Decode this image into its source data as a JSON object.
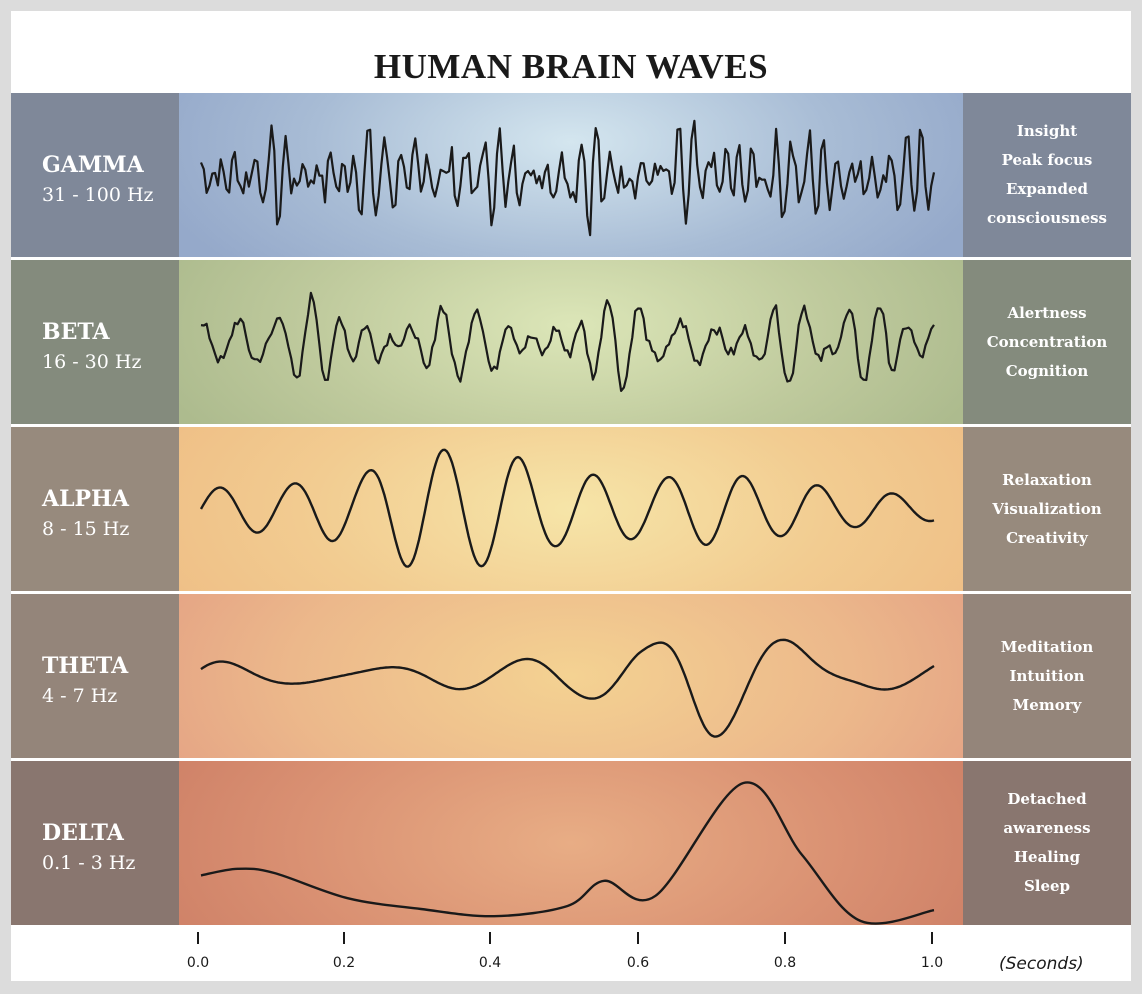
{
  "title": "HUMAN BRAIN WAVES",
  "bands": [
    {
      "name": "GAMMA",
      "range": "31 - 100 Hz",
      "roles": [
        "Insight",
        "Peak focus",
        "Expanded",
        "consciousness"
      ],
      "wave": {
        "frequencies": [
          45,
          52,
          61,
          38
        ],
        "amplitudes": [
          18,
          14,
          12,
          10
        ],
        "noise": 14,
        "samples": 260
      }
    },
    {
      "name": "BETA",
      "range": "16 - 30 Hz",
      "roles": [
        "Alertness",
        "Concentration",
        "Cognition"
      ],
      "wave": {
        "frequencies": [
          22,
          27,
          18,
          30
        ],
        "amplitudes": [
          18,
          14,
          12,
          8
        ],
        "noise": 6,
        "samples": 260
      }
    },
    {
      "name": "ALPHA",
      "range": "8 - 15 Hz",
      "roles": [
        "Relaxation",
        "Visualization",
        "Creativity"
      ],
      "wave": {
        "frequencies": [
          9.8
        ],
        "amplitudes": [
          60
        ],
        "envelope": [
          0.35,
          0.4,
          0.55,
          1.0,
          0.95,
          0.6,
          0.5,
          0.6,
          0.45,
          0.3,
          0.2
        ],
        "noise": 0,
        "samples": 400
      }
    },
    {
      "name": "THETA",
      "range": "4 - 7 Hz",
      "roles": [
        "Meditation",
        "Intuition",
        "Memory"
      ],
      "wave": {
        "frequencies": [
          5.2,
          6.7
        ],
        "amplitudes": [
          22,
          12
        ],
        "envelope": [
          0.6,
          0.5,
          0.7,
          0.6,
          0.5,
          0.6,
          0.9,
          2.5,
          2.6,
          1.0,
          0.7
        ],
        "noise": 0,
        "samples": 400
      }
    },
    {
      "name": "DELTA",
      "range": "0.1 - 3 Hz",
      "roles": [
        "Detached",
        "awareness",
        "Healing",
        "Sleep"
      ],
      "wave": {
        "points": [
          [
            0.0,
            0.54
          ],
          [
            0.05,
            0.43
          ],
          [
            0.1,
            0.5
          ],
          [
            0.2,
            0.92
          ],
          [
            0.3,
            1.1
          ],
          [
            0.4,
            1.22
          ],
          [
            0.5,
            1.05
          ],
          [
            0.55,
            0.63
          ],
          [
            0.62,
            0.88
          ],
          [
            0.74,
            -1.0
          ],
          [
            0.82,
            0.2
          ],
          [
            0.9,
            1.3
          ],
          [
            1.0,
            1.12
          ]
        ]
      }
    }
  ],
  "axis": {
    "ticks": [
      "0.0",
      "0.2",
      "0.4",
      "0.6",
      "0.8",
      "1.0"
    ],
    "tick_values": [
      0.0,
      0.2,
      0.4,
      0.6,
      0.8,
      1.0
    ],
    "unit": "(Seconds)"
  }
}
